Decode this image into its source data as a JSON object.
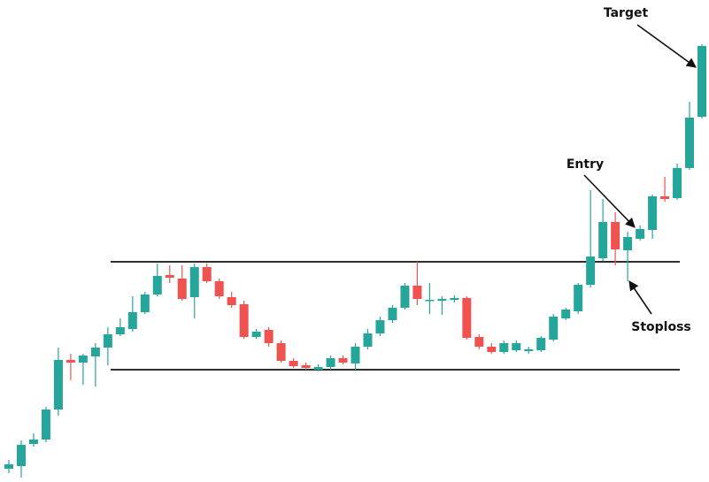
{
  "chart_data": {
    "type": "candlestick",
    "up_color": "#26a69a",
    "down_color": "#ef5350",
    "ylim": [
      0,
      545
    ],
    "hlines": [
      249,
      127
    ],
    "annotations": [
      "Target",
      "Entry",
      "Stoploss"
    ],
    "open": [
      15,
      18,
      43,
      48,
      82,
      138,
      135,
      142,
      152,
      167,
      173,
      192,
      212,
      234,
      230,
      209,
      243,
      227,
      209,
      201,
      164,
      172,
      157,
      137,
      132,
      127,
      130,
      140,
      134,
      153,
      168,
      183,
      197,
      222,
      205,
      205,
      206,
      208,
      164,
      153,
      147,
      149,
      148,
      149,
      161,
      185,
      193,
      223,
      253,
      294,
      262,
      275,
      285,
      323,
      321,
      355,
      413
    ],
    "high": [
      25,
      47,
      55,
      85,
      152,
      145,
      145,
      157,
      175,
      185,
      210,
      215,
      247,
      245,
      245,
      247,
      247,
      230,
      215,
      205,
      173,
      175,
      160,
      140,
      135,
      133,
      143,
      143,
      157,
      173,
      187,
      200,
      225,
      249,
      225,
      210,
      211,
      210,
      167,
      157,
      160,
      160,
      153,
      165,
      190,
      197,
      225,
      330,
      320,
      305,
      283,
      290,
      325,
      345,
      360,
      430,
      495
    ],
    "low": [
      10,
      5,
      40,
      45,
      75,
      115,
      110,
      108,
      132,
      165,
      170,
      190,
      210,
      225,
      205,
      185,
      225,
      207,
      197,
      162,
      162,
      153,
      135,
      129,
      127,
      125,
      127,
      133,
      127,
      150,
      165,
      180,
      195,
      200,
      190,
      189,
      203,
      161,
      150,
      145,
      145,
      147,
      145,
      147,
      159,
      183,
      190,
      220,
      250,
      245,
      227,
      273,
      275,
      317,
      319,
      353,
      411
    ],
    "close": [
      20,
      42,
      48,
      82,
      138,
      135,
      143,
      152,
      167,
      175,
      192,
      212,
      233,
      231,
      207,
      243,
      227,
      210,
      200,
      164,
      170,
      157,
      137,
      131,
      129,
      130,
      140,
      135,
      153,
      168,
      183,
      197,
      222,
      207,
      206,
      207,
      208,
      163,
      153,
      147,
      157,
      157,
      150,
      163,
      187,
      195,
      223,
      255,
      294,
      263,
      277,
      286,
      323,
      320,
      355,
      412,
      493
    ]
  }
}
